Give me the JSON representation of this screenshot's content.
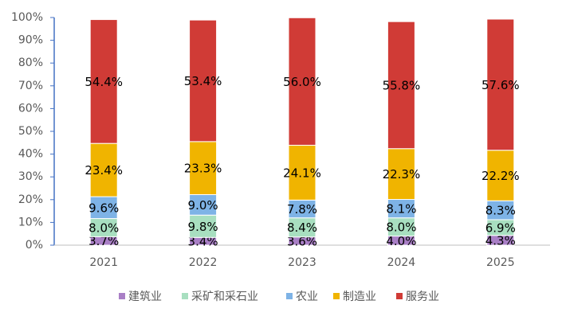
{
  "chart_data": {
    "type": "stacked_bar",
    "categories": [
      "2021",
      "2022",
      "2023",
      "2024",
      "2025"
    ],
    "series": [
      {
        "name": "建筑业",
        "color": "#a97fc6",
        "values": [
          3.7,
          3.4,
          3.6,
          4.0,
          4.3
        ],
        "value_labels": [
          "3.7%",
          "3.4%",
          "3.6%",
          "4.0%",
          "4.3%"
        ]
      },
      {
        "name": "采矿和采石业",
        "color": "#a8dfc0",
        "values": [
          8.0,
          9.8,
          8.4,
          8.0,
          6.9
        ],
        "value_labels": [
          "8.0%",
          "9.8%",
          "8.4%",
          "8.0%",
          "6.9%"
        ]
      },
      {
        "name": "农业",
        "color": "#7eb3e6",
        "values": [
          9.6,
          9.0,
          7.8,
          8.1,
          8.3
        ],
        "value_labels": [
          "9.6%",
          "9.0%",
          "7.8%",
          "8.1%",
          "8.3%"
        ]
      },
      {
        "name": "制造业",
        "color": "#f0b400",
        "values": [
          23.4,
          23.3,
          24.1,
          22.3,
          22.2
        ],
        "value_labels": [
          "23.4%",
          "23.3%",
          "24.1%",
          "22.3%",
          "22.2%"
        ]
      },
      {
        "name": "服务业",
        "color": "#d03b36",
        "values": [
          54.4,
          53.4,
          56.0,
          55.8,
          57.6
        ],
        "value_labels": [
          "54.4%",
          "53.4%",
          "56.0%",
          "55.8%",
          "57.6%"
        ]
      }
    ],
    "ylim": [
      0,
      100
    ],
    "yticks": [
      {
        "value": 0,
        "label": "0%"
      },
      {
        "value": 10,
        "label": "10%"
      },
      {
        "value": 20,
        "label": "20%"
      },
      {
        "value": 30,
        "label": "30%"
      },
      {
        "value": 40,
        "label": "40%"
      },
      {
        "value": 50,
        "label": "50%"
      },
      {
        "value": 60,
        "label": "60%"
      },
      {
        "value": 70,
        "label": "70%"
      },
      {
        "value": 80,
        "label": "80%"
      },
      {
        "value": 90,
        "label": "90%"
      },
      {
        "value": 100,
        "label": "100%"
      }
    ],
    "legend": "bottom"
  }
}
